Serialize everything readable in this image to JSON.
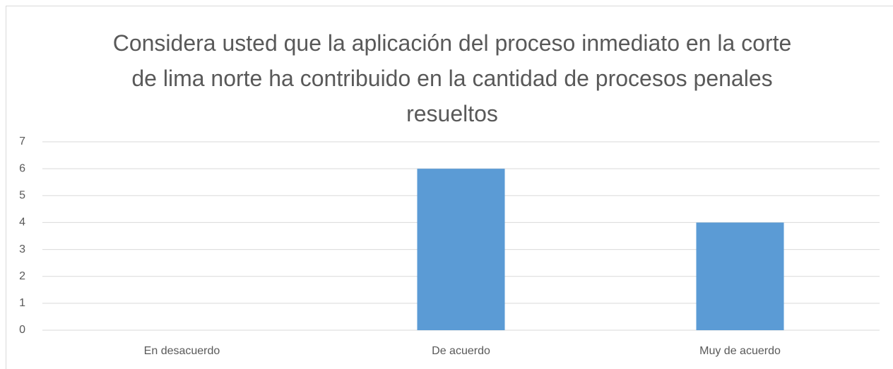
{
  "chart_data": {
    "type": "bar",
    "title": "Considera usted que la aplicación del proceso inmediato en la corte de lima norte ha contribuido en la cantidad de procesos penales resueltos",
    "categories": [
      "En desacuerdo",
      "De acuerdo",
      "Muy de acuerdo"
    ],
    "values": [
      0,
      6,
      4
    ],
    "color": "#5b9bd5",
    "ylim": [
      0,
      7
    ],
    "yticks": [
      0,
      1,
      2,
      3,
      4,
      5,
      6,
      7
    ],
    "grid": true
  }
}
